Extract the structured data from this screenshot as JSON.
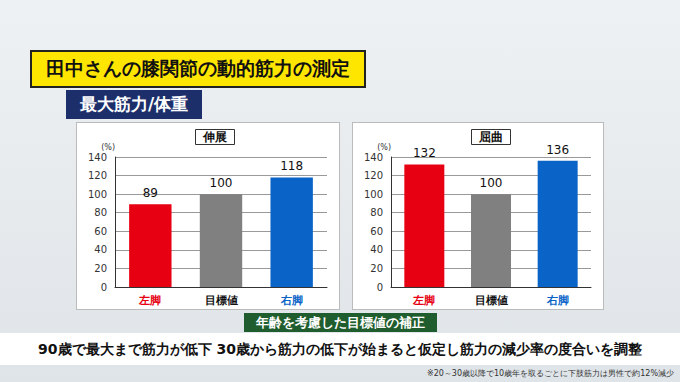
{
  "header": {
    "title": "田中さんの膝関節の動的筋力の測定",
    "subtitle": "最大筋力/体重"
  },
  "footer": {
    "caption": "年齢を考慮した目標値の補正",
    "text": "90歳で最大まで筋力が低下 30歳から筋力の低下が始まると仮定し筋力の減少率の度合いを調整",
    "footnote": "※20～30歳以降で10歳年を取るごとに下肢筋力は男性で約12%減少"
  },
  "chart_data": [
    {
      "type": "bar",
      "title": "伸展",
      "ylabel": "(%)",
      "categories": [
        "左脚",
        "目標値",
        "右脚"
      ],
      "values": [
        89,
        100,
        118
      ],
      "colors": [
        "#e60012",
        "#808080",
        "#0a64c8"
      ],
      "ylim": [
        0,
        140
      ],
      "yticks": [
        0,
        20,
        40,
        60,
        80,
        100,
        120,
        140
      ],
      "grid": true,
      "data_labels": true
    },
    {
      "type": "bar",
      "title": "屈曲",
      "ylabel": "(%)",
      "categories": [
        "左脚",
        "目標値",
        "右脚"
      ],
      "values": [
        132,
        100,
        136
      ],
      "colors": [
        "#e60012",
        "#808080",
        "#0a64c8"
      ],
      "ylim": [
        0,
        140
      ],
      "yticks": [
        0,
        20,
        40,
        60,
        80,
        100,
        120,
        140
      ],
      "grid": true,
      "data_labels": true
    }
  ]
}
